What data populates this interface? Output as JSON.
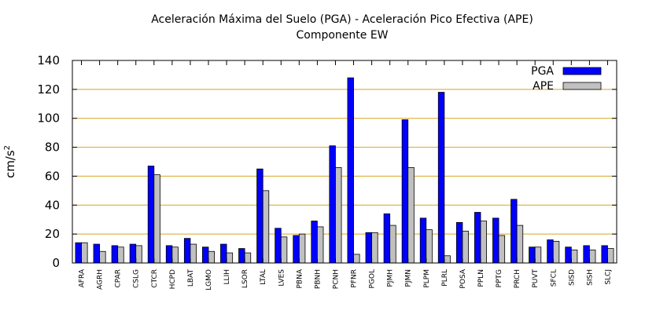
{
  "chart_data": {
    "type": "bar",
    "title": "Aceleración Máxima del Suelo (PGA) -  Aceleración Pico Efectiva (APE)",
    "subtitle": "Componente EW",
    "ylabel_base": "cm/s",
    "ylabel_exp": "2",
    "ylim": [
      0,
      140
    ],
    "yticks": [
      0,
      20,
      40,
      60,
      80,
      100,
      120,
      140
    ],
    "grid": true,
    "legend_position": "top-right",
    "categories": [
      "AFRA",
      "AGRH",
      "CPAR",
      "CSLG",
      "CTCR",
      "HCPD",
      "LBAT",
      "LGMO",
      "LLIH",
      "LSOR",
      "LTAL",
      "LVES",
      "PBNA",
      "PBNH",
      "PCNH",
      "PFNR",
      "PGOL",
      "PJMH",
      "PJMN",
      "PLPM",
      "PLRL",
      "POSA",
      "PPLN",
      "PPTG",
      "PRCH",
      "PUVT",
      "SFCL",
      "SISD",
      "SISH",
      "SLCJ"
    ],
    "series": [
      {
        "name": "PGA",
        "color": "#0000ff",
        "values": [
          14,
          13,
          12,
          13,
          67,
          12,
          17,
          11,
          13,
          10,
          65,
          24,
          19,
          29,
          81,
          128,
          21,
          34,
          99,
          31,
          118,
          28,
          35,
          31,
          44,
          11,
          16,
          11,
          12,
          12
        ]
      },
      {
        "name": "APE",
        "color": "#c0c0c0",
        "values": [
          14,
          8,
          11,
          12,
          61,
          11,
          13,
          8,
          7,
          7,
          50,
          18,
          20,
          25,
          66,
          6,
          21,
          26,
          66,
          23,
          5,
          22,
          29,
          19,
          26,
          11,
          15,
          9,
          9,
          10
        ]
      }
    ]
  }
}
